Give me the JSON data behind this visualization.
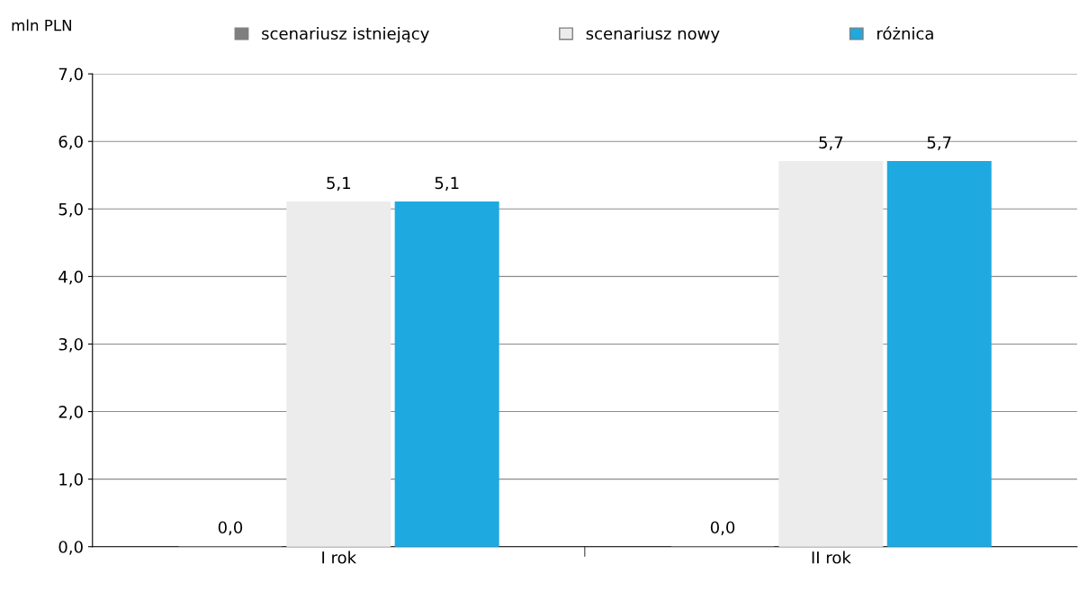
{
  "chart_data": {
    "type": "bar",
    "ylabel": "mln PLN",
    "categories": [
      "I rok",
      "II rok"
    ],
    "series": [
      {
        "name": "scenariusz istniejący",
        "color": "#7f7f7f",
        "values": [
          0.0,
          0.0
        ],
        "value_labels": [
          "0,0",
          "0,0"
        ]
      },
      {
        "name": "scenariusz nowy",
        "color": "#ececec",
        "values": [
          5.1,
          5.7
        ],
        "value_labels": [
          "5,1",
          "5,7"
        ]
      },
      {
        "name": "różnica",
        "color": "#1ea9e1",
        "values": [
          5.1,
          5.7
        ],
        "value_labels": [
          "5,1",
          "5,7"
        ]
      }
    ],
    "ylim": [
      0,
      7
    ],
    "yticks": [
      {
        "value": 0,
        "label": "0,0"
      },
      {
        "value": 1,
        "label": "1,0"
      },
      {
        "value": 2,
        "label": "2,0"
      },
      {
        "value": 3,
        "label": "3,0"
      },
      {
        "value": 4,
        "label": "4,0"
      },
      {
        "value": 5,
        "label": "5,0"
      },
      {
        "value": 6,
        "label": "6,0"
      },
      {
        "value": 7,
        "label": "7,0"
      }
    ],
    "grid": "y",
    "legend": "top"
  }
}
